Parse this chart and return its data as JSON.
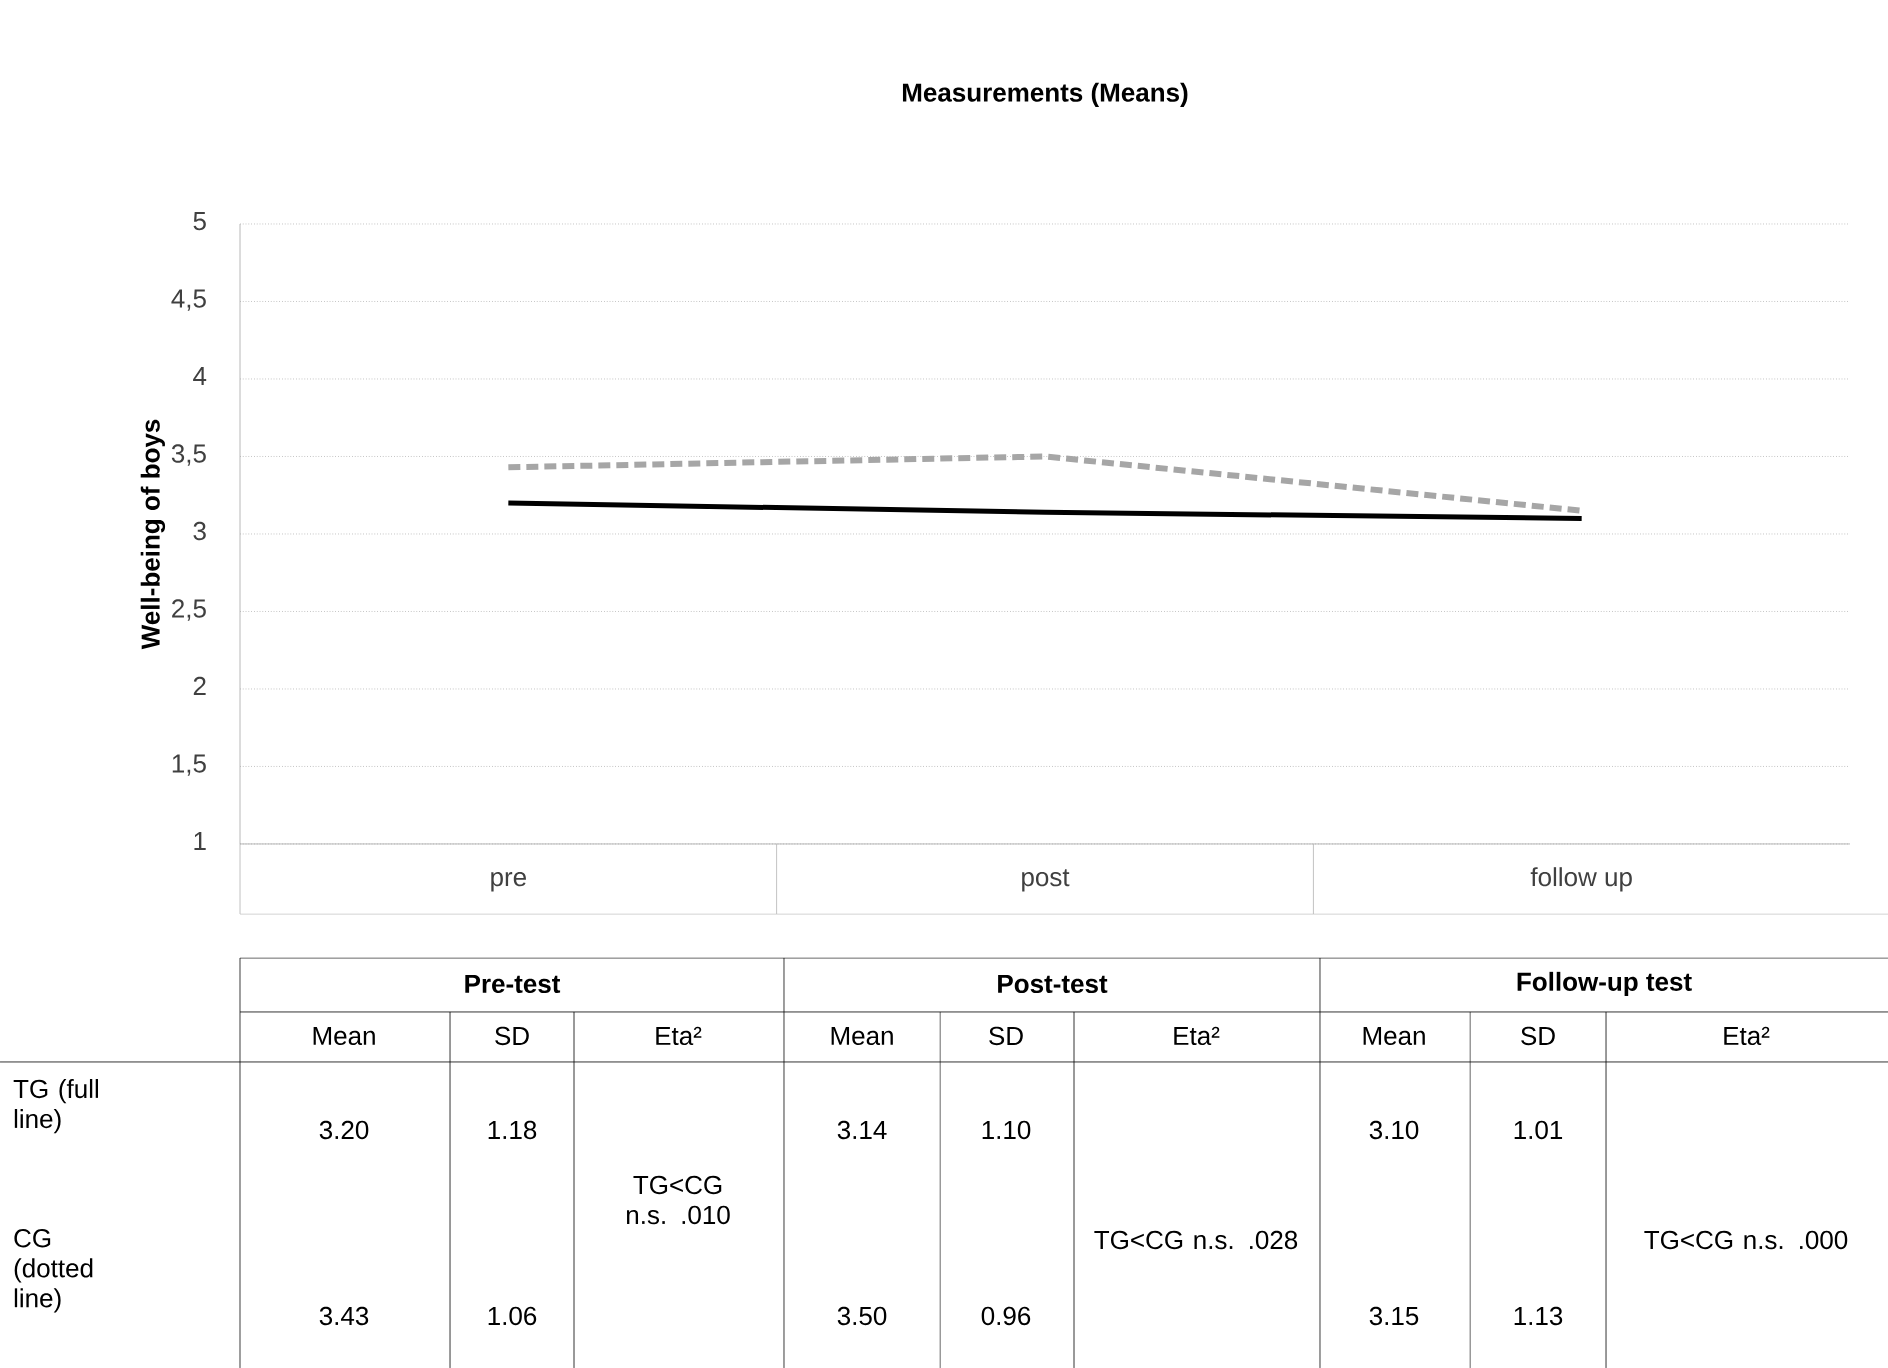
{
  "chart_data": {
    "type": "line",
    "title": "Measurements (Means)",
    "ylabel": "Well-being of boys",
    "categories": [
      "pre",
      "post",
      "follow up"
    ],
    "series": [
      {
        "color": "#000000",
        "line_style": "solid",
        "values": [
          3.2,
          3.14,
          3.1
        ],
        "value_labels": [
          "3.20",
          "3.14",
          "3.10"
        ]
      },
      {
        "color": "#a6a6a6",
        "line_style": "dashed",
        "values": [
          3.43,
          3.5,
          3.15
        ],
        "value_labels": [
          "3.43",
          "3.50",
          "3.15"
        ]
      }
    ],
    "ylim": [
      1,
      5
    ],
    "yticks": [
      1,
      {
        "value": 1.5,
        "label": "1,5"
      },
      2,
      {
        "value": 2.5,
        "label": "2,5"
      },
      3,
      {
        "value": 3.5,
        "label": "3,5"
      },
      4,
      {
        "value": 4.5,
        "label": "4,5"
      },
      5
    ],
    "grid": "y",
    "legend": false,
    "marker": "none",
    "annotations": [
      "Pre-test",
      "Post-test",
      "Follow-up test",
      "Mean",
      "SD",
      "Eta²",
      "1.18",
      "1.06",
      "1.10",
      "0.96",
      "1.01",
      "1.13",
      "TG<CG n.s. .010",
      "TG<CG n.s. .028",
      "TG<CG n.s. .000",
      "TG (full line)",
      "CG (dotted line)"
    ]
  }
}
